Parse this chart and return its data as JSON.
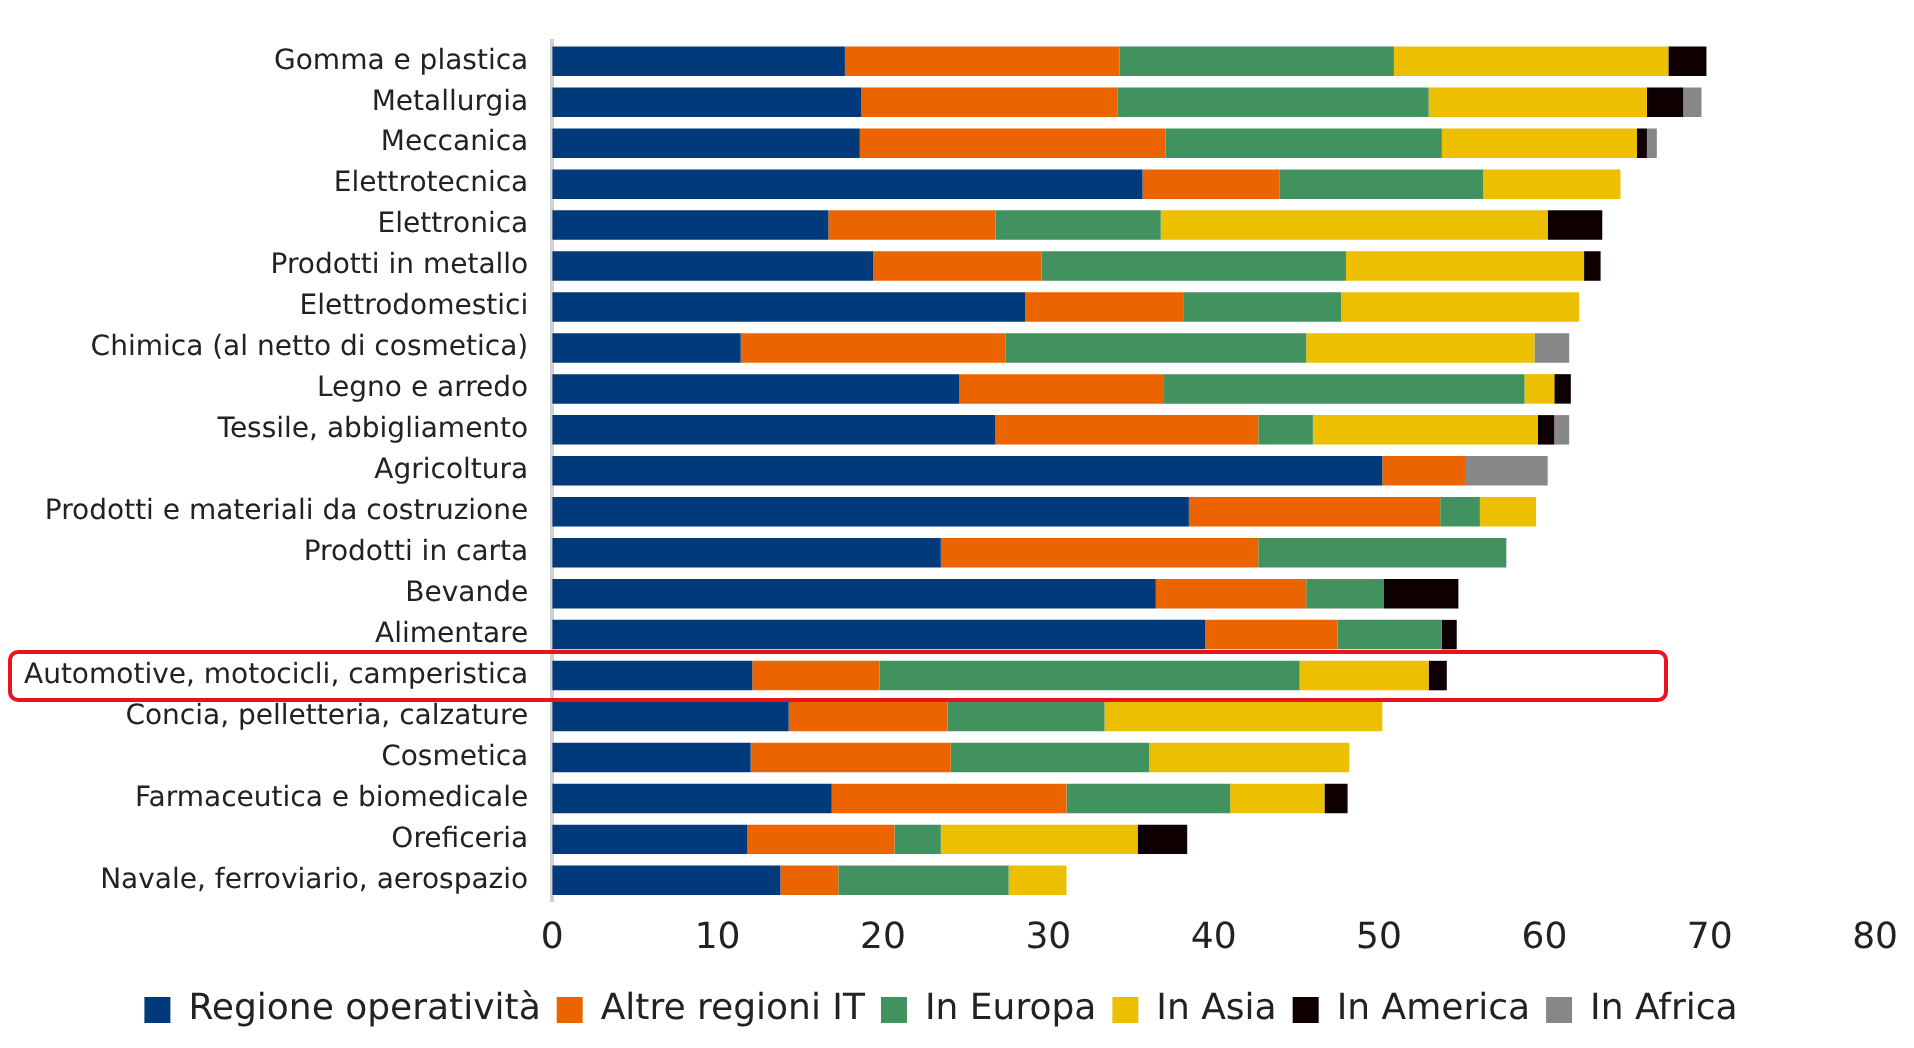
{
  "chart_data": {
    "type": "bar",
    "orientation": "horizontal",
    "stacked": true,
    "categories": [
      "Gomma e plastica",
      "Metallurgia",
      "Meccanica",
      "Elettrotecnica",
      "Elettronica",
      "Prodotti in metallo",
      "Elettrodomestici",
      "Chimica (al netto di cosmetica)",
      "Legno e arredo",
      "Tessile, abbigliamento",
      "Agricoltura",
      "Prodotti e materiali da costruzione",
      "Prodotti in carta",
      "Bevande",
      "Alimentare",
      "Automotive, motocicli, camperistica",
      "Concia, pelletteria, calzature",
      "Cosmetica",
      "Farmaceutica e biomedicale",
      "Oreficeria",
      "Navale, ferroviario, aerospazio"
    ],
    "series": [
      {
        "name": "Regione operatività",
        "color": "#003a7a",
        "values": [
          17.7,
          18.7,
          18.6,
          35.7,
          16.7,
          19.4,
          28.6,
          11.4,
          24.6,
          26.8,
          50.2,
          38.5,
          23.5,
          36.5,
          39.5,
          12.1,
          14.3,
          12.0,
          16.9,
          11.8,
          13.8
        ]
      },
      {
        "name": "Altre regioni IT",
        "color": "#ec6400",
        "values": [
          16.6,
          15.5,
          18.5,
          8.3,
          10.1,
          10.2,
          9.6,
          16.0,
          12.4,
          15.9,
          5.0,
          15.2,
          19.2,
          9.1,
          8.0,
          7.7,
          9.6,
          12.1,
          14.2,
          8.9,
          3.5
        ]
      },
      {
        "name": "In Europa",
        "color": "#41925e",
        "values": [
          16.6,
          18.8,
          16.7,
          12.3,
          10.0,
          18.4,
          9.5,
          18.2,
          21.8,
          3.3,
          0,
          2.4,
          15.0,
          4.7,
          6.3,
          25.4,
          9.5,
          12.0,
          9.9,
          2.8,
          10.3
        ]
      },
      {
        "name": "In Asia",
        "color": "#ecbf00",
        "values": [
          16.6,
          13.2,
          11.8,
          8.3,
          23.4,
          14.4,
          14.4,
          13.8,
          1.8,
          13.6,
          0,
          3.4,
          0,
          0,
          0,
          7.8,
          16.8,
          12.1,
          5.7,
          11.9,
          3.5
        ]
      },
      {
        "name": "In America",
        "color": "#0e0000",
        "values": [
          2.3,
          2.2,
          0.6,
          0,
          3.3,
          1.0,
          0,
          0,
          1.0,
          1.0,
          0,
          0,
          0,
          4.5,
          0.9,
          1.1,
          0,
          0,
          1.4,
          3.0,
          0
        ]
      },
      {
        "name": "In Africa",
        "color": "#878787",
        "values": [
          0,
          1.1,
          0.6,
          0,
          0,
          0,
          0,
          2.1,
          0,
          0.9,
          5.0,
          0,
          0,
          0,
          0,
          0,
          0,
          0,
          0,
          0,
          0
        ]
      }
    ],
    "xlim": [
      0,
      80
    ],
    "xticks": [
      0,
      10,
      20,
      30,
      40,
      50,
      60,
      70,
      80
    ],
    "legend": "bottom"
  }
}
